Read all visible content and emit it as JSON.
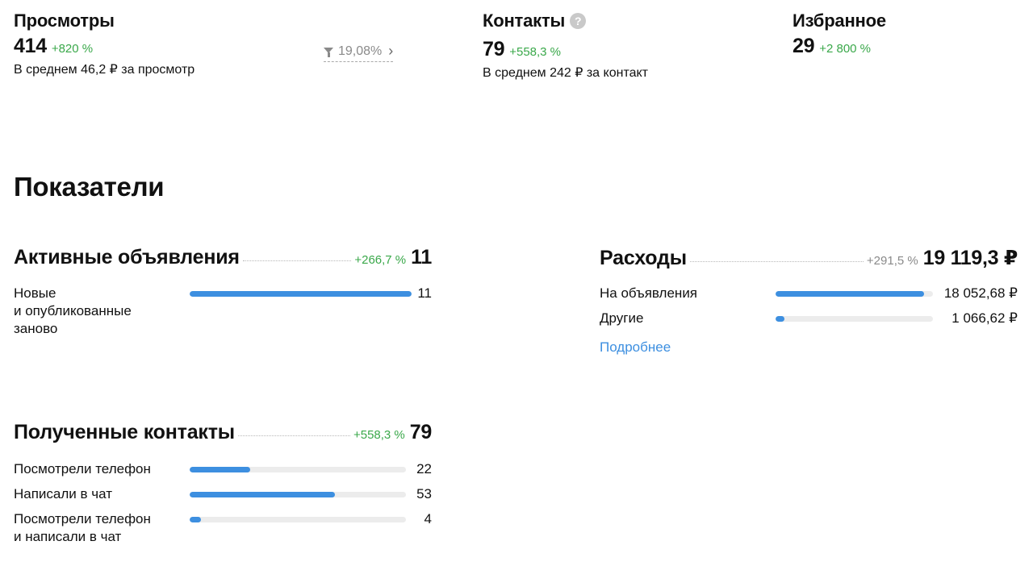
{
  "stats": {
    "views": {
      "title": "Просмотры",
      "value": "414",
      "delta": "+820 %",
      "sub": "В среднем 46,2 ₽ за просмотр",
      "conversion": "19,08%"
    },
    "contacts": {
      "title": "Контакты",
      "help": "?",
      "value": "79",
      "delta": "+558,3 %",
      "sub": "В среднем 242 ₽ за контакт"
    },
    "favorites": {
      "title": "Избранное",
      "value": "29",
      "delta": "+2 800 %"
    }
  },
  "heading": "Показатели",
  "active_listings": {
    "title": "Активные объявления",
    "delta": "+266,7 %",
    "total": "11",
    "rows": [
      {
        "label": "Новые\nи опубликованные\nзаново",
        "value": "11",
        "fraction": 1.0
      }
    ]
  },
  "expenses": {
    "title": "Расходы",
    "delta": "+291,5 %",
    "total": "19 119,3 ₽",
    "rows": [
      {
        "label": "На объявления",
        "value": "18 052,68 ₽",
        "fraction": 0.944
      },
      {
        "label": "Другие",
        "value": "1 066,62 ₽",
        "fraction": 0.056
      }
    ],
    "link": "Подробнее"
  },
  "received_contacts": {
    "title": "Полученные контакты",
    "delta": "+558,3 %",
    "total": "79",
    "rows": [
      {
        "label": "Посмотрели телефон",
        "value": "22",
        "fraction": 0.278
      },
      {
        "label": "Написали в чат",
        "value": "53",
        "fraction": 0.671
      },
      {
        "label": "Посмотрели телефон\nи написали в чат",
        "value": "4",
        "fraction": 0.051
      }
    ]
  },
  "colors": {
    "accent": "#3d8fe0",
    "positive": "#3aa84a",
    "muted": "#8a8a8a",
    "track": "#ececec"
  }
}
